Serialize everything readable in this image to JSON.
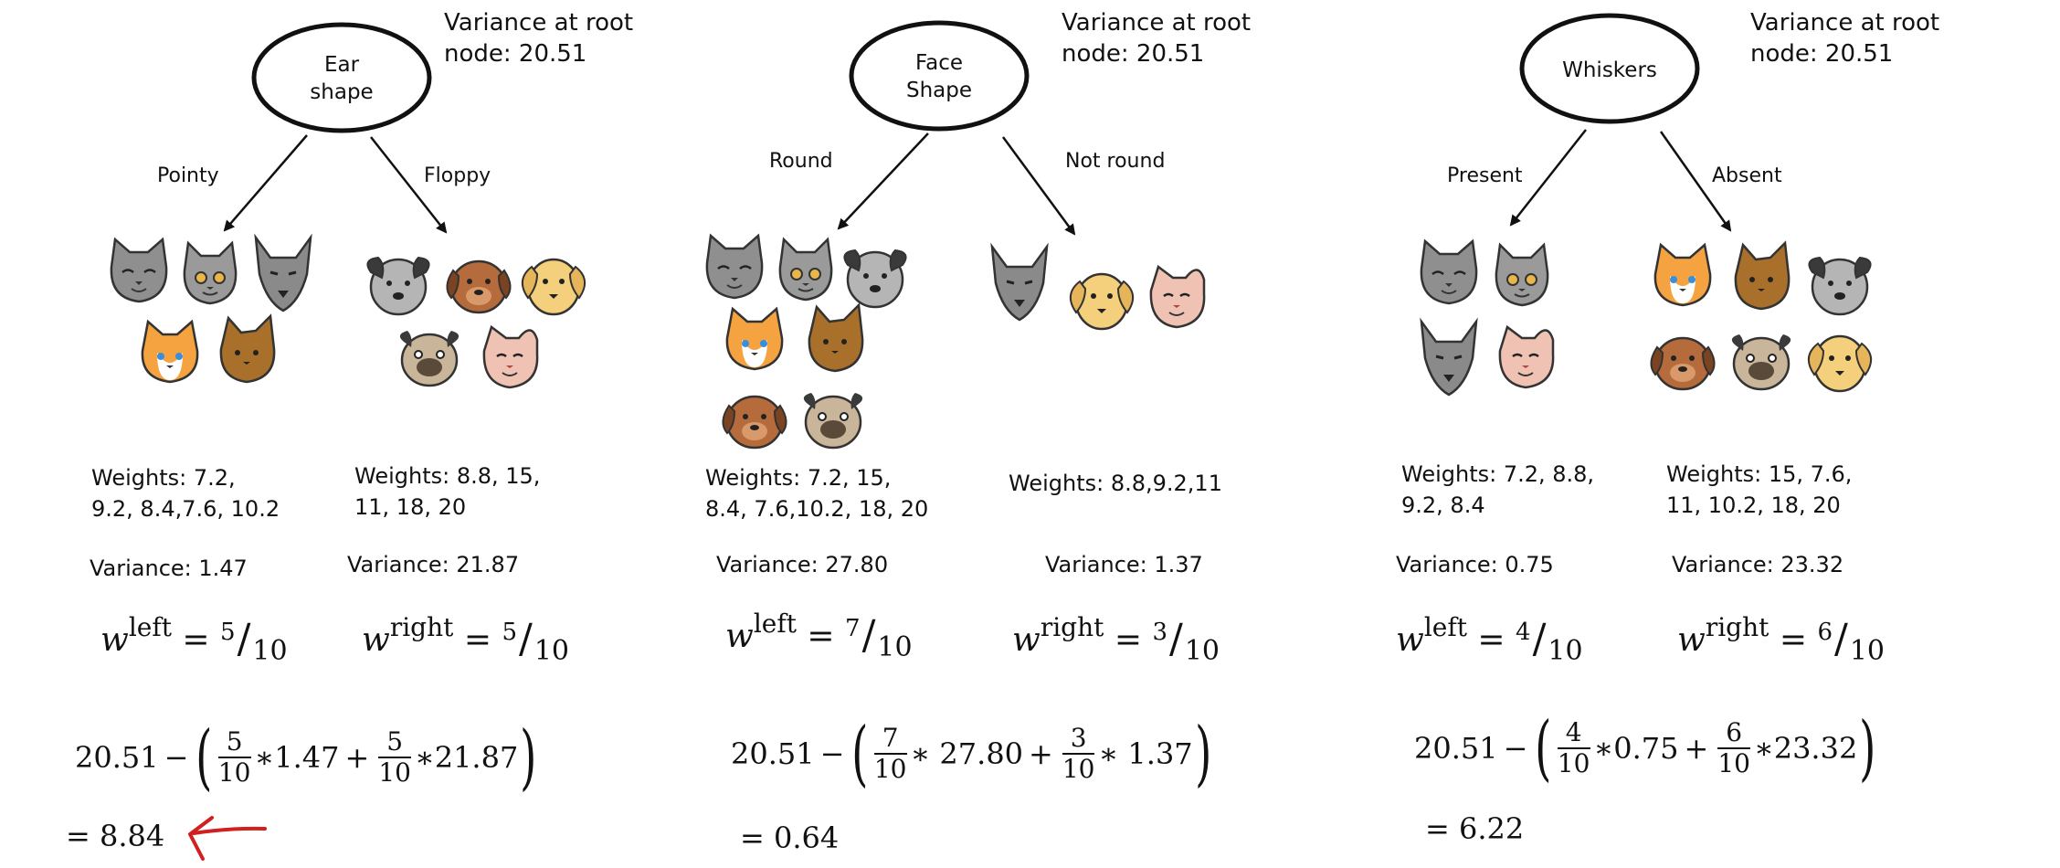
{
  "panels": [
    {
      "root": {
        "line1": "Ear",
        "line2": "shape"
      },
      "variance_root": "Variance at root\nnode: 20.51",
      "left_branch": "Pointy",
      "right_branch": "Floppy",
      "left_weights": "Weights: 7.2,\n9.2, 8.4,7.6, 10.2",
      "right_weights": "Weights: 8.8, 15,\n11, 18, 20",
      "left_variance": "Variance: 1.47",
      "right_variance": "Variance: 21.87",
      "w_left": {
        "num": "5",
        "den": "10"
      },
      "w_right": {
        "num": "5",
        "den": "10"
      },
      "formula": {
        "root": "20.51",
        "f1n": "5",
        "f1d": "10",
        "v1": "1.47",
        "f2n": "5",
        "f2d": "10",
        "v2": "21.87"
      },
      "result": "= 8.84"
    },
    {
      "root": {
        "line1": "Face",
        "line2": "Shape"
      },
      "variance_root": "Variance at root\nnode: 20.51",
      "left_branch": "Round",
      "right_branch": "Not round",
      "left_weights": "Weights: 7.2, 15,\n8.4, 7.6,10.2, 18, 20",
      "right_weights": "Weights: 8.8,9.2,11",
      "left_variance": "Variance: 27.80",
      "right_variance": "Variance: 1.37",
      "w_left": {
        "num": "7",
        "den": "10"
      },
      "w_right": {
        "num": "3",
        "den": "10"
      },
      "formula": {
        "root": "20.51",
        "f1n": "7",
        "f1d": "10",
        "v1": "27.80",
        "f2n": "3",
        "f2d": "10",
        "v2": "1.37"
      },
      "result": "= 0.64"
    },
    {
      "root": {
        "line1": "Whiskers",
        "line2": ""
      },
      "variance_root": "Variance at root\nnode: 20.51",
      "left_branch": "Present",
      "right_branch": "Absent",
      "left_weights": "Weights: 7.2, 8.8,\n9.2, 8.4",
      "right_weights": "Weights: 15, 7.6,\n11, 10.2, 18, 20",
      "left_variance": "Variance: 0.75",
      "right_variance": "Variance: 23.32",
      "w_left": {
        "num": "4",
        "den": "10"
      },
      "w_right": {
        "num": "6",
        "den": "10"
      },
      "formula": {
        "root": "20.51",
        "f1n": "4",
        "f1d": "10",
        "v1": "0.75",
        "f2n": "6",
        "f2d": "10",
        "v2": "23.32"
      },
      "result": "= 6.22"
    }
  ],
  "w_symbol": "w",
  "w_left_sup": "left",
  "w_right_sup": "right",
  "equals": "=",
  "minus": "−",
  "times": "∗",
  "plus": "+",
  "colors": {
    "arrow": "#111111",
    "red_arrow": "#d21f1f",
    "cat_gray": "#8f8f8f",
    "cat_orange": "#f4a340",
    "cat_brown": "#a8702a",
    "dog_tan": "#f4cf7c",
    "dog_brown": "#b56b3b",
    "dog_pug": "#c9b59a",
    "cat_pink": "#f0c2b4"
  },
  "animals": {
    "panel0_left": [
      "gray-cat",
      "gray-cat",
      "gray-cat",
      "orange-cat",
      "brown-cat"
    ],
    "panel0_right": [
      "gray-dog",
      "brown-dog",
      "tan-dog",
      "pug-dog",
      "pink-cat"
    ],
    "panel1_left": [
      "gray-cat",
      "gray-cat",
      "gray-dog",
      "orange-cat",
      "brown-cat",
      "brown-dog",
      "pug-dog"
    ],
    "panel1_right": [
      "gray-cat",
      "tan-dog",
      "pink-cat"
    ],
    "panel2_left": [
      "gray-cat",
      "gray-cat",
      "gray-cat",
      "pink-cat"
    ],
    "panel2_right": [
      "orange-cat",
      "brown-cat",
      "gray-dog",
      "brown-dog",
      "pug-dog",
      "tan-dog"
    ]
  }
}
